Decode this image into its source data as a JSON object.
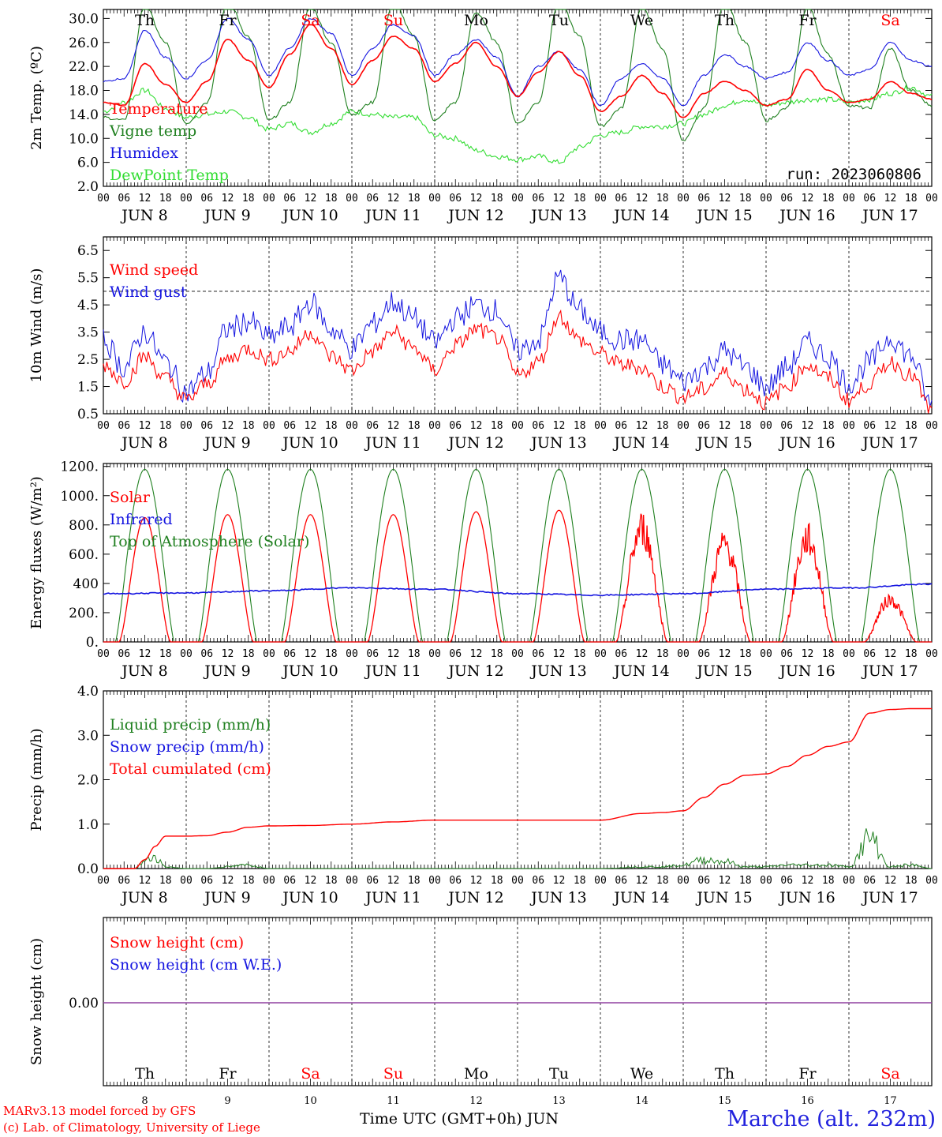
{
  "days": [
    {
      "dow": "Th",
      "dom": "8",
      "weekend": false
    },
    {
      "dow": "Fr",
      "dom": "9",
      "weekend": false
    },
    {
      "dow": "Sa",
      "dom": "10",
      "weekend": true
    },
    {
      "dow": "Su",
      "dom": "11",
      "weekend": true
    },
    {
      "dow": "Mo",
      "dom": "12",
      "weekend": false
    },
    {
      "dow": "Tu",
      "dom": "13",
      "weekend": false
    },
    {
      "dow": "We",
      "dom": "14",
      "weekend": false
    },
    {
      "dow": "Th",
      "dom": "15",
      "weekend": false
    },
    {
      "dow": "Fr",
      "dom": "16",
      "weekend": false
    },
    {
      "dow": "Sa",
      "dom": "17",
      "weekend": true
    }
  ],
  "month_label": "JUN",
  "hour_labels": [
    "00",
    "06",
    "12",
    "18"
  ],
  "end_hour_label": "00",
  "colors": {
    "red": "#ff0000",
    "green": "#208020",
    "blue": "#1515e0",
    "light_green": "#33dd33",
    "purple": "#9040a0"
  },
  "footer": {
    "model": "MARv3.13 model forced by GFS",
    "credit": "(c) Lab. of Climatology, University of Liege",
    "time_axis": "Time UTC (GMT+0h) JUN",
    "station": "Marche (alt. 232m)"
  },
  "chart_data": [
    {
      "type": "line",
      "ylabel": "2m Temp. (ºC)",
      "ylim": [
        2,
        31.5
      ],
      "yticks": [
        "2.0",
        "6.0",
        "10.0",
        "14.0",
        "18.0",
        "22.0",
        "26.0",
        "30.0"
      ],
      "annotation": "run: 2023060806",
      "legend": [
        {
          "name": "Temperature",
          "color": "#ff0000"
        },
        {
          "name": "Vigne temp",
          "color": "#208020"
        },
        {
          "name": "Humidex",
          "color": "#1515e0"
        },
        {
          "name": "DewPoint Temp",
          "color": "#33dd33"
        }
      ],
      "hours": [
        0,
        6,
        12,
        18,
        24,
        30,
        36,
        42,
        48,
        54,
        60,
        66,
        72,
        78,
        84,
        90,
        96,
        102,
        108,
        114,
        120,
        126,
        132,
        138,
        144,
        150,
        156,
        162,
        168,
        174,
        180,
        186,
        192,
        198,
        204,
        210,
        216,
        222,
        228,
        234,
        240
      ],
      "series": [
        {
          "name": "Temperature",
          "color": "#ff0000",
          "values": [
            16,
            15.5,
            22.5,
            19,
            16,
            19.5,
            26.5,
            23,
            18.5,
            24,
            29,
            25,
            19,
            23,
            27,
            25,
            19.5,
            22.5,
            26,
            22,
            17,
            21,
            24.5,
            20.5,
            14.5,
            17,
            20.5,
            17.5,
            13.5,
            17.5,
            19.5,
            18,
            15.5,
            16.5,
            21.5,
            18,
            16,
            16.5,
            19.5,
            17.5,
            16.5
          ]
        },
        {
          "name": "Vigne temp",
          "color": "#208020",
          "values": [
            13.5,
            13,
            32,
            26,
            12.5,
            16,
            33,
            27,
            13,
            16,
            32,
            26,
            14,
            16,
            33,
            27,
            13,
            16,
            31,
            26,
            12.5,
            16,
            33,
            27,
            12,
            15,
            32,
            25,
            9.5,
            15,
            33,
            26,
            13,
            15,
            32,
            24,
            15.5,
            15,
            25,
            18,
            15.5
          ]
        },
        {
          "name": "Humidex",
          "color": "#1515e0",
          "values": [
            19.5,
            20,
            28,
            23.5,
            20,
            23,
            30,
            26.5,
            20.5,
            25,
            30,
            27.5,
            20.5,
            25,
            29,
            27,
            20.5,
            24,
            26.5,
            23.5,
            17,
            22,
            24.5,
            21.5,
            15.5,
            20,
            22.5,
            20,
            15.5,
            20.5,
            24,
            22,
            20,
            21,
            26,
            23,
            20.5,
            21.5,
            26,
            23,
            22
          ]
        },
        {
          "name": "DewPoint Temp",
          "color": "#33dd33",
          "values": [
            14.5,
            16,
            18,
            15,
            13.5,
            14,
            14.5,
            13.5,
            11.5,
            12.5,
            11,
            12.5,
            14.5,
            14,
            13.5,
            13.5,
            10.5,
            10,
            8,
            7,
            6.5,
            7,
            6,
            8.5,
            10.5,
            11,
            12,
            12,
            12.5,
            14,
            15.5,
            16.5,
            15.5,
            16,
            16.5,
            16.5,
            16,
            16.5,
            17.5,
            18.5,
            17
          ]
        }
      ]
    },
    {
      "type": "line",
      "ylabel": "10m Wind (m/s)",
      "ylim": [
        0.5,
        7
      ],
      "yticks": [
        "0.5",
        "1.5",
        "2.5",
        "3.5",
        "4.5",
        "5.5",
        "6.5"
      ],
      "legend": [
        {
          "name": "Wind speed",
          "color": "#ff0000"
        },
        {
          "name": "Wind gust",
          "color": "#1515e0"
        }
      ],
      "reference_line": 5.0,
      "hours": [
        0,
        6,
        12,
        18,
        24,
        30,
        36,
        42,
        48,
        54,
        60,
        66,
        72,
        78,
        84,
        90,
        96,
        102,
        108,
        114,
        120,
        126,
        132,
        138,
        144,
        150,
        156,
        162,
        168,
        174,
        180,
        186,
        192,
        198,
        204,
        210,
        216,
        222,
        228,
        234,
        240
      ],
      "series": [
        {
          "name": "Wind speed",
          "color": "#ff0000",
          "values": [
            2.3,
            1.7,
            2.6,
            1.8,
            1.0,
            1.6,
            2.5,
            2.9,
            2.5,
            2.8,
            3.5,
            2.6,
            2.1,
            2.8,
            3.5,
            2.9,
            2.1,
            3.0,
            3.6,
            3.3,
            1.9,
            2.4,
            4.1,
            3.2,
            2.7,
            2.3,
            2.2,
            1.5,
            1.1,
            1.4,
            2.0,
            1.4,
            0.9,
            1.5,
            2.3,
            1.8,
            1.0,
            1.6,
            2.4,
            1.9,
            0.6
          ]
        },
        {
          "name": "Wind gust",
          "color": "#1515e0",
          "values": [
            3.2,
            2.2,
            3.5,
            2.4,
            1.3,
            2.0,
            3.6,
            3.9,
            3.3,
            3.7,
            4.6,
            3.6,
            2.9,
            3.8,
            4.6,
            4.0,
            3.1,
            4.0,
            4.5,
            4.3,
            2.8,
            3.2,
            5.5,
            4.3,
            3.5,
            3.2,
            3.2,
            2.3,
            1.7,
            2.2,
            2.8,
            2.2,
            1.5,
            2.2,
            3.1,
            2.6,
            1.6,
            2.4,
            3.3,
            2.6,
            0.8
          ]
        }
      ]
    },
    {
      "type": "line",
      "ylabel": "Energy fluxes (W/m²)",
      "ylim": [
        0,
        1220
      ],
      "yticks": [
        "0.",
        "200.",
        "400",
        "600.",
        "800.",
        "1000.",
        "1200."
      ],
      "legend": [
        {
          "name": "Solar",
          "color": "#ff0000"
        },
        {
          "name": "Infrared",
          "color": "#1515e0"
        },
        {
          "name": "Top of Atmosphere (Solar)",
          "color": "#208020"
        }
      ],
      "toa_peak": 1180,
      "solar_peaks": [
        850,
        870,
        870,
        870,
        890,
        900,
        860,
        740,
        780,
        320
      ],
      "hours": [
        0,
        24,
        48,
        72,
        96,
        120,
        144,
        168,
        192,
        216,
        240
      ],
      "series": [
        {
          "name": "Infrared",
          "color": "#1515e0",
          "values": [
            330,
            335,
            350,
            370,
            360,
            330,
            320,
            330,
            360,
            370,
            395
          ]
        }
      ]
    },
    {
      "type": "line",
      "ylabel": "Precip (mm/h)",
      "ylim": [
        0,
        4
      ],
      "yticks": [
        "0.0",
        "1.0",
        "2.0",
        "3.0",
        "4.0"
      ],
      "legend": [
        {
          "name": "Liquid precip (mm/h)",
          "color": "#208020"
        },
        {
          "name": "Snow precip (mm/h)",
          "color": "#1515e0"
        },
        {
          "name": "Total cumulated (cm)",
          "color": "#ff0000"
        }
      ],
      "hours": [
        0,
        6,
        9,
        12,
        15,
        18,
        24,
        30,
        36,
        42,
        48,
        60,
        72,
        84,
        96,
        108,
        120,
        132,
        144,
        156,
        162,
        168,
        174,
        180,
        186,
        192,
        198,
        204,
        210,
        216,
        222,
        228,
        234,
        240
      ],
      "series": [
        {
          "name": "Total cumulated (cm)",
          "color": "#ff0000",
          "values": [
            0,
            0,
            0,
            0.2,
            0.5,
            0.73,
            0.73,
            0.74,
            0.82,
            0.93,
            0.96,
            0.97,
            1.0,
            1.05,
            1.09,
            1.09,
            1.09,
            1.09,
            1.09,
            1.24,
            1.26,
            1.3,
            1.6,
            1.9,
            2.1,
            2.13,
            2.3,
            2.55,
            2.75,
            2.85,
            3.5,
            3.58,
            3.6,
            3.6
          ]
        },
        {
          "name": "Liquid precip (mm/h)",
          "color": "#208020",
          "values": [
            0,
            0,
            0,
            0.2,
            0.35,
            0.05,
            0,
            0,
            0.05,
            0.1,
            0,
            0,
            0,
            0,
            0,
            0,
            0,
            0,
            0,
            0.05,
            0.05,
            0.1,
            0.25,
            0.2,
            0.05,
            0.05,
            0.1,
            0.1,
            0.1,
            0.05,
            0.85,
            0.05,
            0.1,
            0
          ]
        }
      ]
    },
    {
      "type": "line",
      "ylabel": "Snow height (cm)",
      "yticks": [
        "0.00"
      ],
      "legend": [
        {
          "name": "Snow height (cm)",
          "color": "#ff0000"
        },
        {
          "name": "Snow height (cm W.E.)",
          "color": "#1515e0"
        }
      ],
      "series": [
        {
          "name": "Snow height (cm)",
          "color": "#9040a0",
          "values": [
            0,
            0
          ]
        }
      ]
    }
  ]
}
